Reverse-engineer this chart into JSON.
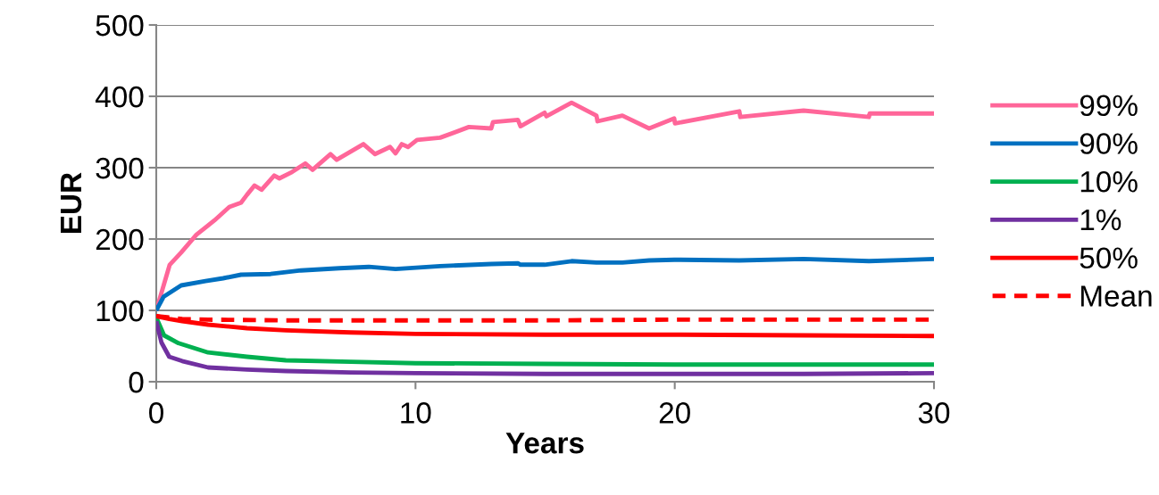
{
  "chart_data": {
    "type": "line",
    "xlabel": "Years",
    "ylabel": "EUR",
    "xlim": [
      0,
      30
    ],
    "xticks": [
      0,
      10,
      20,
      30
    ],
    "ylim": [
      0,
      500
    ],
    "yticks": [
      0,
      100,
      200,
      300,
      400,
      500
    ],
    "grid": "y",
    "legend": "right",
    "marker": "none",
    "line_style": "solid",
    "series": [
      {
        "name": "99%",
        "color": "#ff6699",
        "x": [
          0,
          0.52,
          0.96,
          1.55,
          2.24,
          2.82,
          3.27,
          3.5,
          3.79,
          4.06,
          4.55,
          4.75,
          5.24,
          5.75,
          6.03,
          6.72,
          6.96,
          7.99,
          8.44,
          9.02,
          9.23,
          9.47,
          9.71,
          10.06,
          10.95,
          12.06,
          12.92,
          12.99,
          13.95,
          14.05,
          14.98,
          15.05,
          16.02,
          16.98,
          17.02,
          17.98,
          19.01,
          19.98,
          20.01,
          22.49,
          22.53,
          24.97,
          27.49,
          27.52,
          30
        ],
        "values": [
          100,
          164,
          181,
          206,
          226,
          245,
          251,
          262,
          275,
          269,
          289,
          285,
          294,
          306,
          297,
          319,
          311,
          333,
          319,
          329,
          320,
          333,
          329,
          339,
          342,
          357,
          355,
          364,
          367,
          358,
          377,
          372,
          391,
          373,
          365,
          373,
          355,
          369,
          362,
          379,
          371,
          380,
          371,
          376,
          376
        ]
      },
      {
        "name": "90%",
        "color": "#0070c0",
        "x": [
          0,
          0.28,
          0.96,
          1.9,
          2.58,
          3.27,
          4.41,
          5.58,
          7.06,
          8.2,
          9.23,
          10.95,
          12.92,
          13.95,
          14.05,
          14.98,
          16.02,
          16.98,
          17.98,
          19.01,
          19.98,
          22.49,
          24.97,
          27.49,
          30
        ],
        "values": [
          100,
          119,
          135,
          141,
          145,
          150,
          151,
          156,
          159,
          161,
          158,
          162,
          165,
          166,
          164,
          164,
          169,
          167,
          167,
          170,
          171,
          170,
          172,
          169,
          172
        ]
      },
      {
        "name": "10%",
        "color": "#00b050",
        "x": [
          0,
          0.3,
          0.86,
          2,
          3.5,
          5,
          7.5,
          10,
          15,
          20,
          25,
          30
        ],
        "values": [
          90,
          65,
          54,
          41,
          35,
          30,
          28,
          26,
          25,
          24,
          24,
          24
        ]
      },
      {
        "name": "1%",
        "color": "#7030a0",
        "x": [
          0,
          0.2,
          0.5,
          1,
          2,
          3.5,
          5,
          7.5,
          10,
          15,
          20,
          25,
          30
        ],
        "values": [
          85,
          55,
          35,
          29,
          20,
          17,
          15,
          13,
          12,
          11,
          11,
          11,
          12
        ]
      },
      {
        "name": "50%",
        "color": "#ff0000",
        "x": [
          0,
          0.5,
          1,
          2,
          3.5,
          5,
          7.5,
          10,
          15,
          20,
          25,
          30
        ],
        "values": [
          92,
          88,
          85,
          80,
          75,
          72,
          69,
          67,
          66,
          66,
          65,
          64
        ]
      },
      {
        "name": "Mean",
        "color": "#ff0000",
        "line_style": "dashed",
        "x": [
          0,
          0.5,
          1,
          2,
          5,
          10,
          15,
          20,
          25,
          30
        ],
        "values": [
          92,
          90,
          88,
          87,
          86,
          86,
          86,
          87,
          87,
          87
        ]
      }
    ]
  }
}
